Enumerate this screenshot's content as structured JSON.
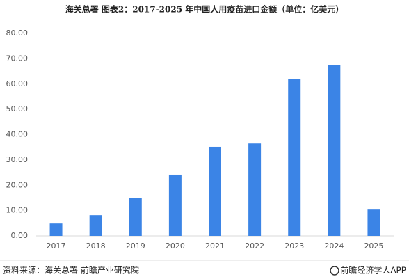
{
  "chart_data": {
    "type": "bar",
    "title": "海关总署  图表2：2017-2025 年中国人用疫苗进口金额（单位：亿美元）",
    "categories": [
      "2017",
      "2018",
      "2019",
      "2020",
      "2021",
      "2022",
      "2023",
      "2024",
      "2025"
    ],
    "values": [
      4.9,
      8.2,
      15.1,
      24.2,
      35.2,
      36.5,
      62.1,
      67.4,
      10.4
    ],
    "color": "#3b84e6",
    "ylim": [
      0,
      80
    ],
    "yticks": [
      {
        "value": 0,
        "label": "0.00"
      },
      {
        "value": 10,
        "label": "10.00"
      },
      {
        "value": 20,
        "label": "20.00"
      },
      {
        "value": 30,
        "label": "30.00"
      },
      {
        "value": 40,
        "label": "40.00"
      },
      {
        "value": 50,
        "label": "50.00"
      },
      {
        "value": 60,
        "label": "60.00"
      },
      {
        "value": 70,
        "label": "70.00"
      },
      {
        "value": 80,
        "label": "80.00"
      }
    ],
    "grid": false,
    "source": "资料来源：海关总署 前瞻产业研究院",
    "brand": "前瞻经济学人APP"
  }
}
